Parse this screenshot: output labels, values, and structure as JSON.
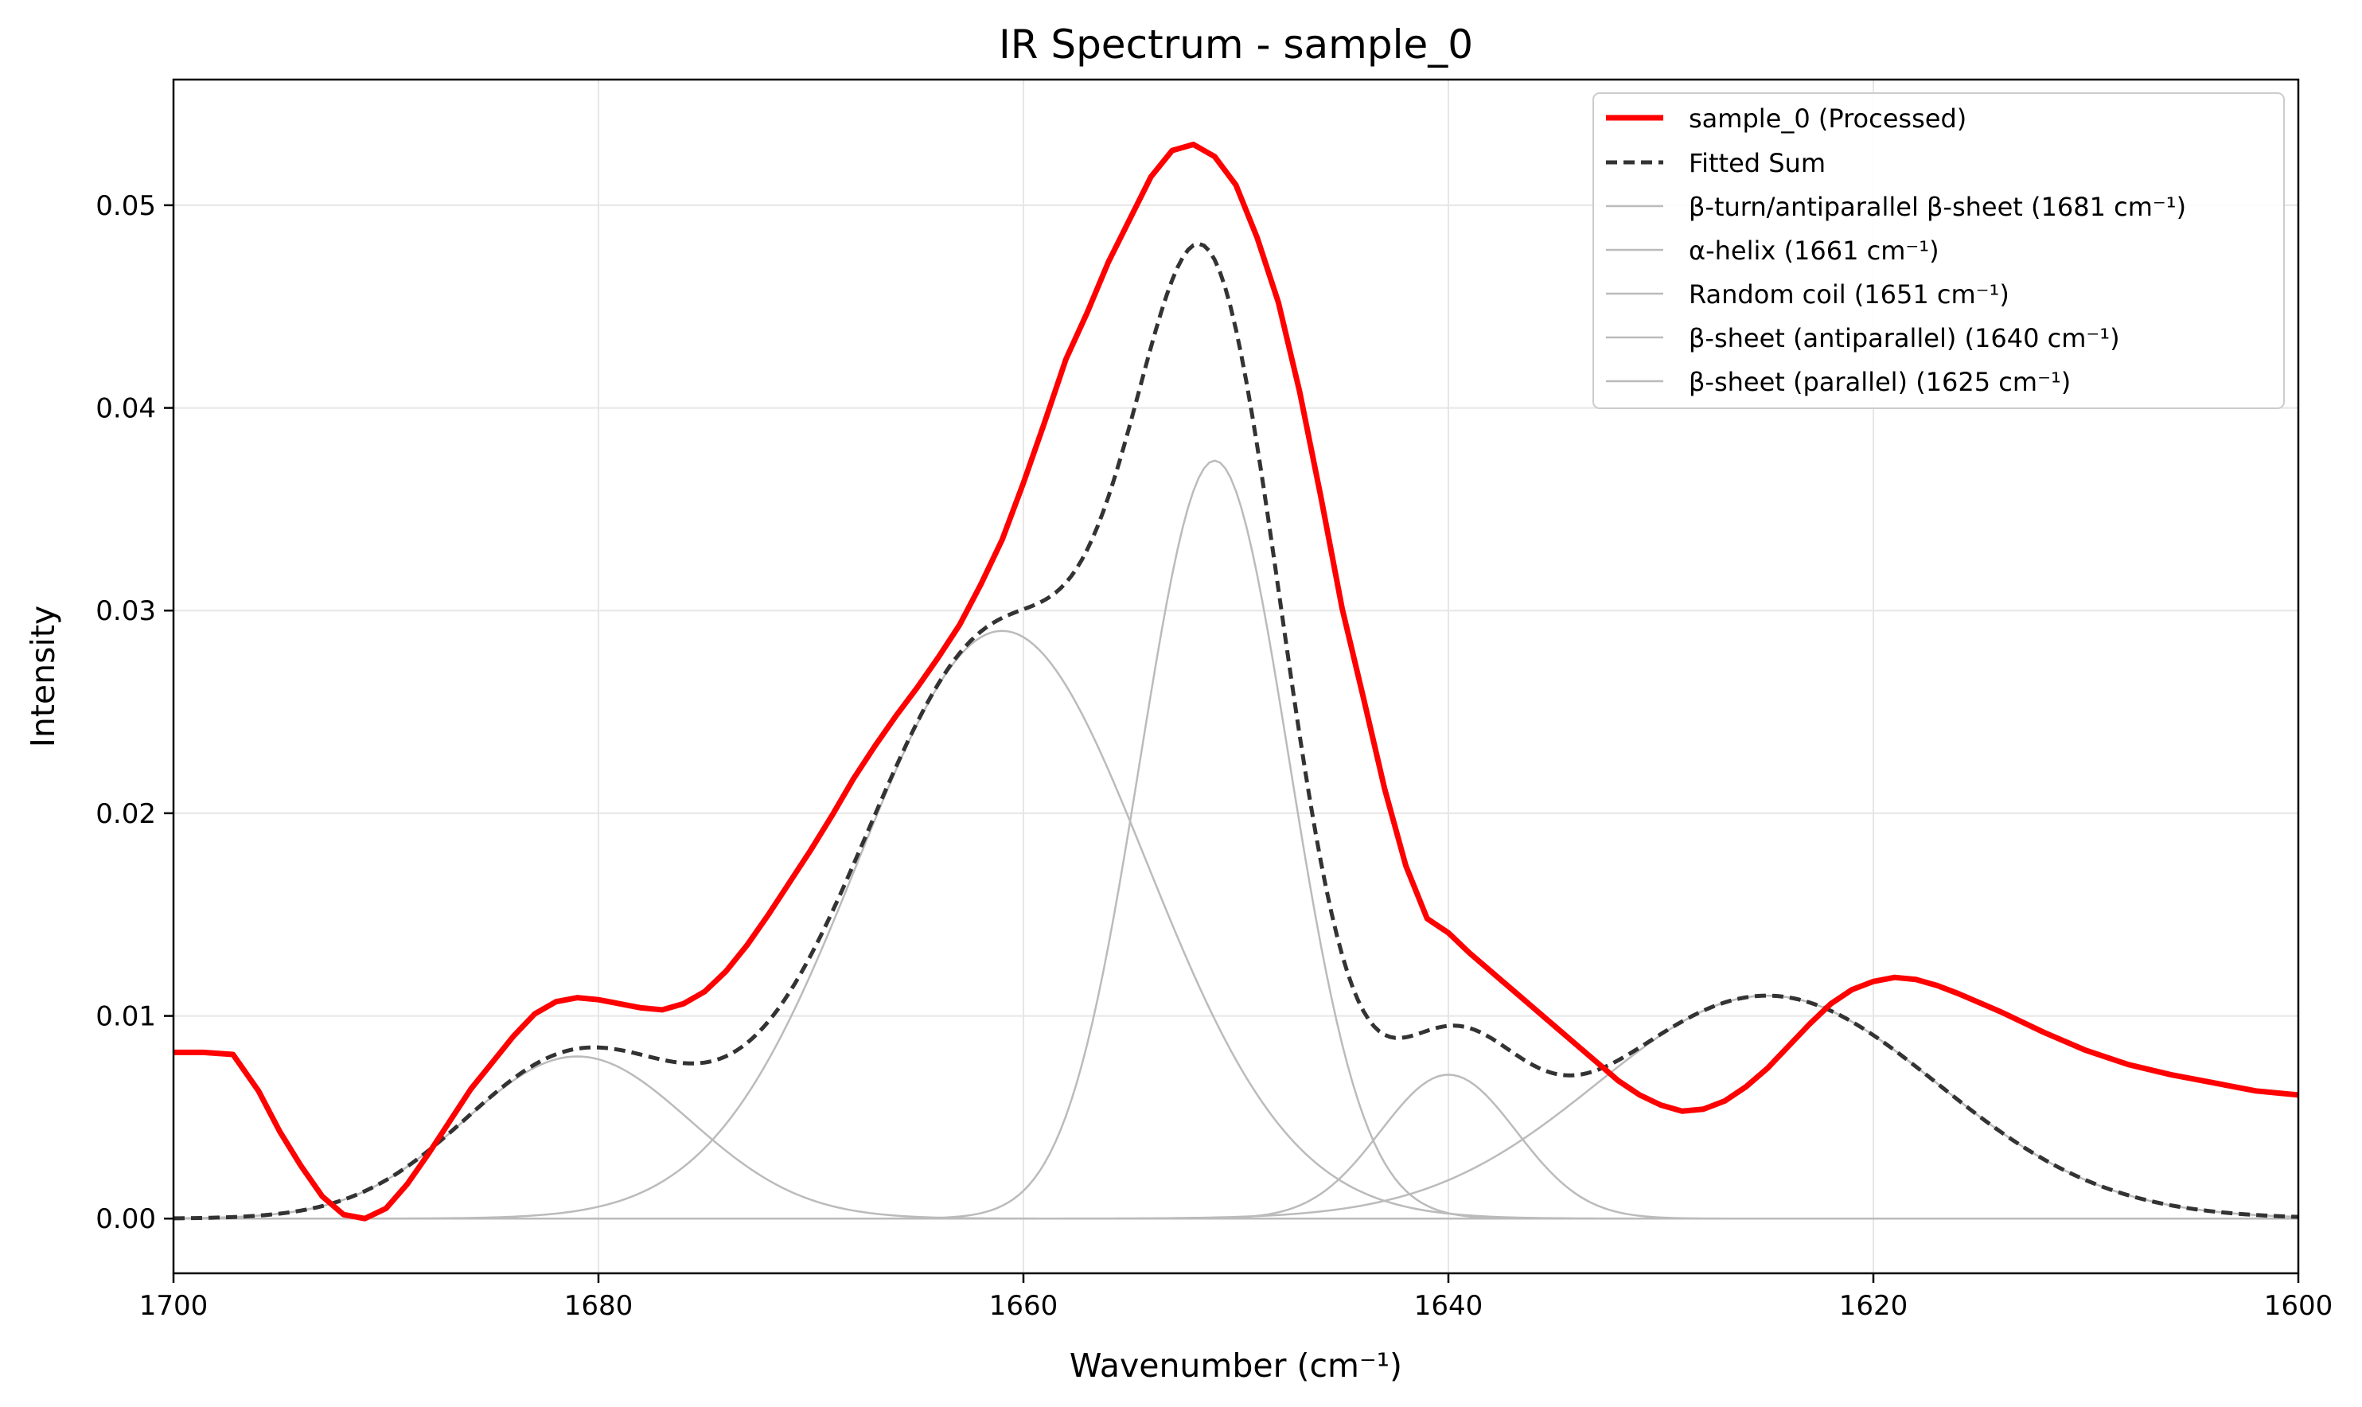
{
  "chart_data": {
    "type": "line",
    "title": "IR Spectrum - sample_0",
    "xlabel": "Wavenumber (cm⁻¹)",
    "ylabel": "Intensity",
    "xlim": [
      1700,
      1600
    ],
    "ylim": [
      -0.0027,
      0.0562
    ],
    "x_ticks": [
      1700,
      1680,
      1660,
      1640,
      1620,
      1600
    ],
    "x_tick_labels": [
      "1700",
      "1680",
      "1660",
      "1640",
      "1620",
      "1600"
    ],
    "y_ticks": [
      0.0,
      0.01,
      0.02,
      0.03,
      0.04,
      0.05
    ],
    "y_tick_labels": [
      "0.00",
      "0.01",
      "0.02",
      "0.03",
      "0.04",
      "0.05"
    ],
    "grid": true,
    "legend_position": "top-right",
    "colors": {
      "processed": "#ff0000",
      "fitted": "#333333",
      "component": "#bbbbbb",
      "baseline": "#999999",
      "grid": "#e6e6e6"
    },
    "series": [
      {
        "name": "sample_0 (Processed)",
        "style": "solid-thick",
        "points": [
          [
            1700,
            0.0082
          ],
          [
            1698.6,
            0.0082
          ],
          [
            1697.2,
            0.0081
          ],
          [
            1696,
            0.0063
          ],
          [
            1695,
            0.0043
          ],
          [
            1694,
            0.0026
          ],
          [
            1693,
            0.0011
          ],
          [
            1692,
            0.0002
          ],
          [
            1691,
            0.0
          ],
          [
            1690,
            0.0005
          ],
          [
            1689,
            0.0017
          ],
          [
            1688,
            0.0032
          ],
          [
            1687,
            0.0048
          ],
          [
            1686,
            0.0064
          ],
          [
            1685,
            0.0077
          ],
          [
            1684,
            0.009
          ],
          [
            1683,
            0.0101
          ],
          [
            1682,
            0.0107
          ],
          [
            1681,
            0.0109
          ],
          [
            1680,
            0.0108
          ],
          [
            1679,
            0.0106
          ],
          [
            1678,
            0.0104
          ],
          [
            1677,
            0.0103
          ],
          [
            1676,
            0.0106
          ],
          [
            1675,
            0.0112
          ],
          [
            1674,
            0.0122
          ],
          [
            1673,
            0.0135
          ],
          [
            1672,
            0.015
          ],
          [
            1671,
            0.0166
          ],
          [
            1670,
            0.0182
          ],
          [
            1669,
            0.0199
          ],
          [
            1668,
            0.0217
          ],
          [
            1667,
            0.0233
          ],
          [
            1666,
            0.0248
          ],
          [
            1665,
            0.0262
          ],
          [
            1664,
            0.0277
          ],
          [
            1663,
            0.0293
          ],
          [
            1662,
            0.0313
          ],
          [
            1661,
            0.0335
          ],
          [
            1660,
            0.0363
          ],
          [
            1659,
            0.0393
          ],
          [
            1658,
            0.0424
          ],
          [
            1657,
            0.0447
          ],
          [
            1656,
            0.0472
          ],
          [
            1655,
            0.0493
          ],
          [
            1654,
            0.0514
          ],
          [
            1653,
            0.0527
          ],
          [
            1652,
            0.053
          ],
          [
            1651,
            0.0524
          ],
          [
            1650,
            0.051
          ],
          [
            1649,
            0.0484
          ],
          [
            1648,
            0.0452
          ],
          [
            1647,
            0.0408
          ],
          [
            1646,
            0.0356
          ],
          [
            1645,
            0.0301
          ],
          [
            1644,
            0.0257
          ],
          [
            1643,
            0.0212
          ],
          [
            1642,
            0.0174
          ],
          [
            1641,
            0.0148
          ],
          [
            1640,
            0.0141
          ],
          [
            1639,
            0.0131
          ],
          [
            1638,
            0.0122
          ],
          [
            1637,
            0.0113
          ],
          [
            1636,
            0.0104
          ],
          [
            1635,
            0.0095
          ],
          [
            1634,
            0.0086
          ],
          [
            1633,
            0.0077
          ],
          [
            1632,
            0.0068
          ],
          [
            1631,
            0.0061
          ],
          [
            1630,
            0.0056
          ],
          [
            1629,
            0.0053
          ],
          [
            1628,
            0.0054
          ],
          [
            1627,
            0.0058
          ],
          [
            1626,
            0.0065
          ],
          [
            1625,
            0.0074
          ],
          [
            1624,
            0.0085
          ],
          [
            1623,
            0.0096
          ],
          [
            1622,
            0.0106
          ],
          [
            1621,
            0.0113
          ],
          [
            1620,
            0.0117
          ],
          [
            1619,
            0.0119
          ],
          [
            1618,
            0.0118
          ],
          [
            1617,
            0.0115
          ],
          [
            1616,
            0.0111
          ],
          [
            1614,
            0.0102
          ],
          [
            1612,
            0.0092
          ],
          [
            1610,
            0.0083
          ],
          [
            1608,
            0.0076
          ],
          [
            1606,
            0.0071
          ],
          [
            1604,
            0.0067
          ],
          [
            1602,
            0.0063
          ],
          [
            1600,
            0.0061
          ]
        ]
      },
      {
        "name": "Fitted Sum",
        "style": "dashed"
      },
      {
        "name": "β-turn/antiparallel β-sheet (1681 cm⁻¹)",
        "style": "thin",
        "center": 1681,
        "amplitude": 0.008,
        "sigma": 5.3
      },
      {
        "name": "α-helix (1661 cm⁻¹)",
        "style": "thin",
        "center": 1661,
        "amplitude": 0.029,
        "sigma": 6.8
      },
      {
        "name": "Random coil (1651 cm⁻¹)",
        "style": "thin",
        "center": 1651,
        "amplitude": 0.0374,
        "sigma": 3.5
      },
      {
        "name": "β-sheet (antiparallel) (1640 cm⁻¹)",
        "style": "thin",
        "center": 1640,
        "amplitude": 0.0071,
        "sigma": 3.2
      },
      {
        "name": "β-sheet (parallel) (1625 cm⁻¹)",
        "style": "thin",
        "center": 1625,
        "amplitude": 0.011,
        "sigma": 8.0
      }
    ]
  }
}
